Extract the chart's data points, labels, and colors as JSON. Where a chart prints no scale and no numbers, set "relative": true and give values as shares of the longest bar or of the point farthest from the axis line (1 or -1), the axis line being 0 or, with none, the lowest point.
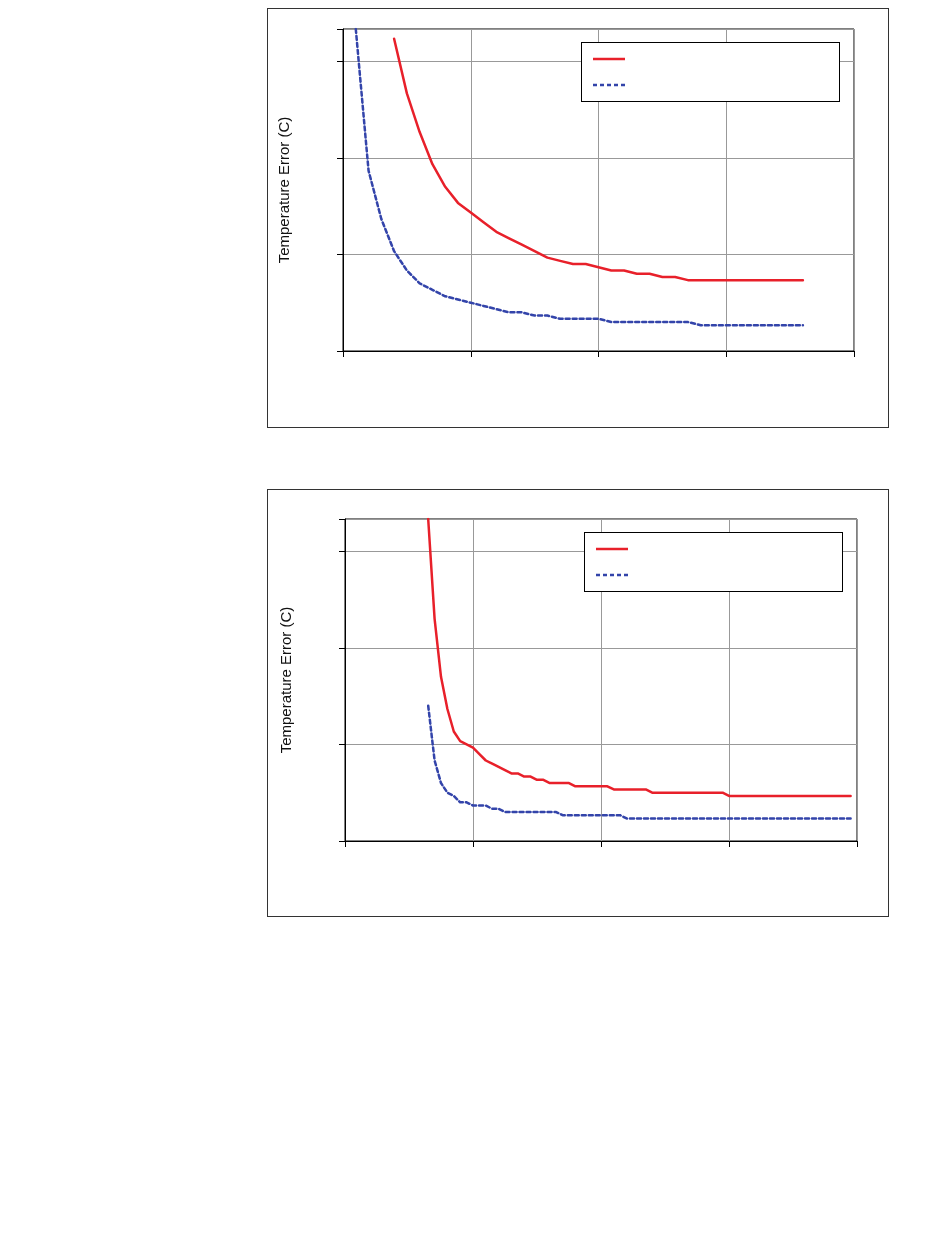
{
  "chart_data": [
    {
      "type": "line",
      "ylabel": "Temperature Error (C)",
      "relative": true,
      "grid": true,
      "marker": "none",
      "categories": [
        null,
        null,
        null,
        null,
        null,
        null,
        null,
        null,
        null,
        null,
        null,
        null,
        null,
        null,
        null,
        null,
        null,
        null,
        null,
        null,
        null,
        null,
        null,
        null,
        null,
        null,
        null,
        null,
        null,
        null,
        null,
        null,
        null,
        null,
        null,
        null,
        null,
        null,
        null,
        null,
        null
      ],
      "series": [
        {
          "color": "#e8202a",
          "line_style": "solid",
          "values": [
            null,
            null,
            null,
            null,
            0.97,
            0.8,
            0.68,
            0.58,
            0.51,
            0.46,
            0.43,
            0.4,
            0.37,
            0.35,
            0.33,
            0.31,
            0.29,
            0.28,
            0.27,
            0.27,
            0.26,
            0.25,
            0.25,
            0.24,
            0.24,
            0.23,
            0.23,
            0.22,
            0.22,
            0.22,
            0.22,
            0.22,
            0.22,
            0.22,
            0.22,
            0.22,
            0.22,
            null,
            null,
            null,
            null
          ]
        },
        {
          "color": "#3344aa",
          "line_style": "dashed",
          "values": [
            null,
            1,
            0.56,
            0.41,
            0.31,
            0.25,
            0.21,
            0.19,
            0.17,
            0.16,
            0.15,
            0.14,
            0.13,
            0.12,
            0.12,
            0.11,
            0.11,
            0.1,
            0.1,
            0.1,
            0.1,
            0.09,
            0.09,
            0.09,
            0.09,
            0.09,
            0.09,
            0.09,
            0.08,
            0.08,
            0.08,
            0.08,
            0.08,
            0.08,
            0.08,
            0.08,
            0.08,
            null,
            null,
            null,
            null
          ]
        }
      ]
    },
    {
      "type": "line",
      "ylabel": "Temperature Error (C)",
      "relative": true,
      "grid": true,
      "marker": "none",
      "categories": [
        null,
        null,
        null,
        null,
        null,
        null,
        null,
        null,
        null,
        null,
        null,
        null,
        null,
        null,
        null,
        null,
        null,
        null,
        null,
        null,
        null,
        null,
        null,
        null,
        null,
        null,
        null,
        null,
        null,
        null,
        null,
        null,
        null,
        null,
        null,
        null,
        null,
        null,
        null,
        null,
        null,
        null,
        null,
        null,
        null,
        null,
        null,
        null,
        null,
        null,
        null,
        null,
        null,
        null,
        null,
        null,
        null,
        null,
        null,
        null,
        null,
        null,
        null,
        null,
        null,
        null,
        null,
        null,
        null,
        null,
        null,
        null,
        null,
        null,
        null,
        null,
        null,
        null,
        null,
        null,
        null
      ],
      "series": [
        {
          "color": "#e8202a",
          "line_style": "solid",
          "values": [
            null,
            null,
            null,
            null,
            null,
            null,
            null,
            null,
            null,
            null,
            null,
            null,
            null,
            1,
            0.69,
            0.51,
            0.41,
            0.34,
            0.31,
            0.3,
            0.29,
            0.27,
            0.25,
            0.24,
            0.23,
            0.22,
            0.21,
            0.21,
            0.2,
            0.2,
            0.19,
            0.19,
            0.18,
            0.18,
            0.18,
            0.18,
            0.17,
            0.17,
            0.17,
            0.17,
            0.17,
            0.17,
            0.16,
            0.16,
            0.16,
            0.16,
            0.16,
            0.16,
            0.15,
            0.15,
            0.15,
            0.15,
            0.15,
            0.15,
            0.15,
            0.15,
            0.15,
            0.15,
            0.15,
            0.15,
            0.14,
            0.14,
            0.14,
            0.14,
            0.14,
            0.14,
            0.14,
            0.14,
            0.14,
            0.14,
            0.14,
            0.14,
            0.14,
            0.14,
            0.14,
            0.14,
            0.14,
            0.14,
            0.14,
            0.14,
            null
          ]
        },
        {
          "color": "#3344aa",
          "line_style": "dashed",
          "values": [
            null,
            null,
            null,
            null,
            null,
            null,
            null,
            null,
            null,
            null,
            null,
            null,
            null,
            0.42,
            0.25,
            0.18,
            0.15,
            0.14,
            0.12,
            0.12,
            0.11,
            0.11,
            0.11,
            0.1,
            0.1,
            0.09,
            0.09,
            0.09,
            0.09,
            0.09,
            0.09,
            0.09,
            0.09,
            0.09,
            0.08,
            0.08,
            0.08,
            0.08,
            0.08,
            0.08,
            0.08,
            0.08,
            0.08,
            0.08,
            0.07,
            0.07,
            0.07,
            0.07,
            0.07,
            0.07,
            0.07,
            0.07,
            0.07,
            0.07,
            0.07,
            0.07,
            0.07,
            0.07,
            0.07,
            0.07,
            0.07,
            0.07,
            0.07,
            0.07,
            0.07,
            0.07,
            0.07,
            0.07,
            0.07,
            0.07,
            0.07,
            0.07,
            0.07,
            0.07,
            0.07,
            0.07,
            0.07,
            0.07,
            0.07,
            0.07,
            null
          ]
        }
      ]
    }
  ]
}
